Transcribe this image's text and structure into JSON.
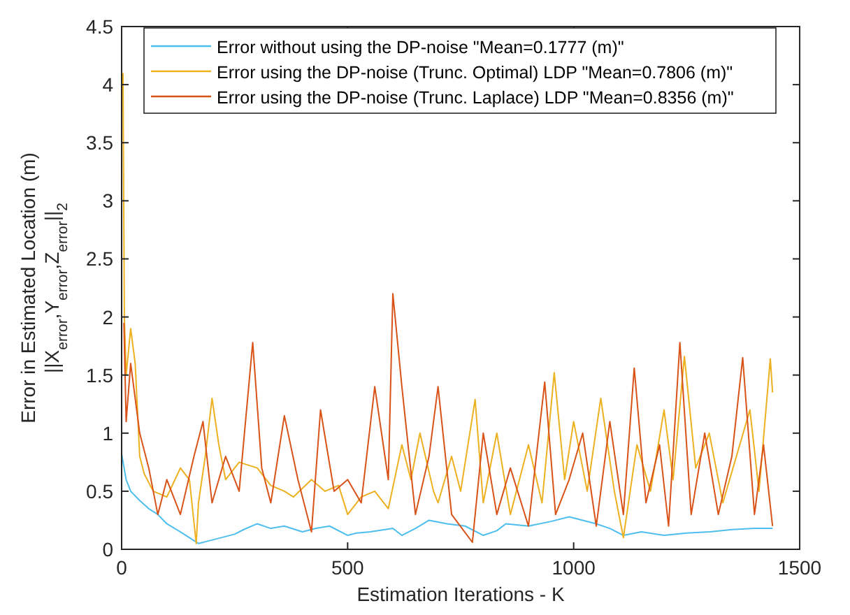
{
  "chart_data": {
    "type": "line",
    "xlabel": "Estimation Iterations - K",
    "ylabel": "Error in Estimated Location (m)\n||X$_{error}$,Y$_{error}$,Z$_{error}$||$_{2}$",
    "xlim": [
      0,
      1500
    ],
    "xticks": [
      0,
      500,
      1000,
      1500
    ],
    "ylim": [
      0,
      4.5
    ],
    "yticks": [
      0,
      0.5,
      1,
      1.5,
      2,
      2.5,
      3,
      3.5,
      4,
      4.5
    ],
    "grid": false,
    "legend": "top right",
    "marker": "none",
    "line_style": "solid",
    "series": [
      {
        "name": "Error without using the DP-noise \"Mean=0.1777 (m)\"",
        "color": "#4dbeee",
        "x": [
          0,
          10,
          20,
          40,
          60,
          80,
          100,
          130,
          150,
          170,
          190,
          220,
          250,
          270,
          300,
          330,
          360,
          400,
          430,
          460,
          500,
          520,
          550,
          600,
          620,
          650,
          680,
          720,
          760,
          800,
          830,
          850,
          900,
          950,
          990,
          1020,
          1050,
          1080,
          1110,
          1150,
          1200,
          1250,
          1300,
          1350,
          1400,
          1440
        ],
        "values": [
          0.82,
          0.6,
          0.5,
          0.42,
          0.35,
          0.3,
          0.22,
          0.15,
          0.1,
          0.05,
          0.07,
          0.1,
          0.13,
          0.17,
          0.22,
          0.18,
          0.2,
          0.15,
          0.18,
          0.2,
          0.12,
          0.14,
          0.15,
          0.18,
          0.12,
          0.18,
          0.25,
          0.22,
          0.2,
          0.12,
          0.16,
          0.22,
          0.2,
          0.24,
          0.28,
          0.25,
          0.22,
          0.18,
          0.12,
          0.15,
          0.12,
          0.14,
          0.15,
          0.17,
          0.18,
          0.18
        ]
      },
      {
        "name": "Error using the DP-noise (Trunc. Optimal) LDP \"Mean=0.7806 (m)\"",
        "color": "#edb120",
        "x": [
          3,
          6,
          10,
          20,
          30,
          40,
          50,
          70,
          100,
          130,
          150,
          165,
          170,
          185,
          200,
          215,
          230,
          260,
          300,
          330,
          360,
          380,
          420,
          450,
          480,
          500,
          530,
          560,
          590,
          620,
          640,
          660,
          690,
          700,
          730,
          750,
          782,
          800,
          830,
          860,
          900,
          930,
          957,
          980,
          1000,
          1030,
          1060,
          1090,
          1110,
          1140,
          1170,
          1200,
          1220,
          1245,
          1270,
          1300,
          1330,
          1360,
          1390,
          1410,
          1435,
          1440
        ],
        "values": [
          4.1,
          2.0,
          1.5,
          1.9,
          1.6,
          0.8,
          0.65,
          0.5,
          0.45,
          0.7,
          0.6,
          0.05,
          0.4,
          0.8,
          1.3,
          0.9,
          0.6,
          0.75,
          0.7,
          0.55,
          0.5,
          0.45,
          0.6,
          0.5,
          0.55,
          0.3,
          0.45,
          0.5,
          0.35,
          0.9,
          0.6,
          1.0,
          0.5,
          0.4,
          0.8,
          0.5,
          1.29,
          0.4,
          1.0,
          0.3,
          0.9,
          0.4,
          1.52,
          0.6,
          1.1,
          0.5,
          1.3,
          0.5,
          0.1,
          0.9,
          0.5,
          1.2,
          0.6,
          1.66,
          0.7,
          1.0,
          0.4,
          0.8,
          1.2,
          0.5,
          1.64,
          1.35
        ]
      },
      {
        "name": "Error using the DP-noise (Trunc. Laplace) LDP \"Mean=0.8356 (m)\"",
        "color": "#d95319",
        "x": [
          5,
          10,
          20,
          40,
          60,
          80,
          100,
          130,
          160,
          180,
          200,
          230,
          260,
          290,
          310,
          330,
          360,
          390,
          420,
          440,
          470,
          500,
          530,
          560,
          590,
          600,
          620,
          650,
          680,
          700,
          730,
          776,
          800,
          830,
          860,
          900,
          936,
          960,
          990,
          1020,
          1050,
          1080,
          1110,
          1134,
          1160,
          1190,
          1210,
          1235,
          1260,
          1290,
          1320,
          1350,
          1374,
          1400,
          1420,
          1440
        ],
        "values": [
          1.95,
          1.1,
          1.6,
          1.0,
          0.7,
          0.3,
          0.6,
          0.3,
          0.8,
          1.1,
          0.4,
          0.8,
          0.5,
          1.78,
          0.7,
          0.4,
          1.15,
          0.6,
          0.15,
          1.2,
          0.5,
          0.6,
          0.4,
          1.4,
          0.6,
          2.2,
          1.4,
          0.3,
          0.8,
          1.4,
          0.3,
          0.06,
          1.0,
          0.3,
          0.7,
          0.2,
          1.44,
          0.3,
          0.6,
          1.0,
          0.2,
          1.1,
          0.3,
          1.56,
          0.4,
          0.9,
          0.2,
          1.78,
          0.3,
          1.0,
          0.3,
          0.8,
          1.65,
          0.3,
          0.9,
          0.2
        ]
      }
    ]
  }
}
